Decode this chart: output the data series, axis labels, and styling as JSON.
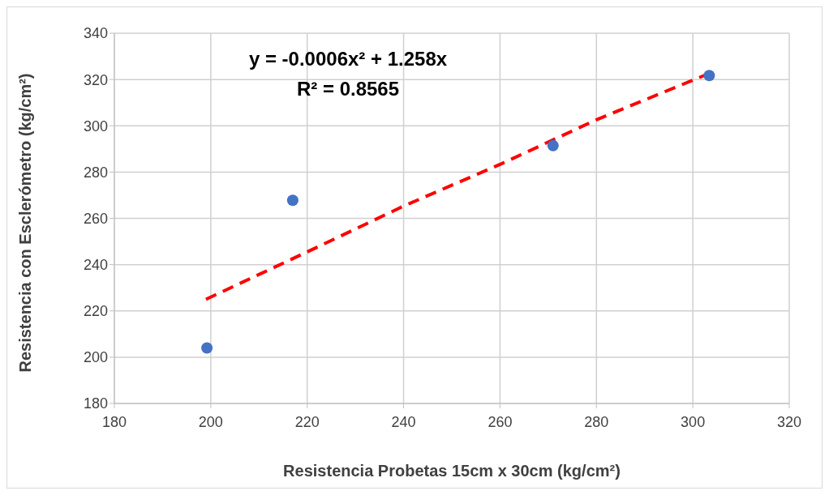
{
  "chart_data": {
    "type": "scatter",
    "xlabel": "Resistencia Probetas 15cm x 30cm  (kg/cm²)",
    "ylabel": "Resistencia con Esclerómetro (kg/cm²)",
    "annotations": [
      "y = -0.0006x² + 1.258x",
      "R² = 0.8565"
    ],
    "xlim": [
      180,
      320
    ],
    "xticks": [
      180,
      200,
      220,
      240,
      260,
      280,
      300,
      320
    ],
    "ylim": [
      180,
      340
    ],
    "yticks": [
      180,
      200,
      220,
      240,
      260,
      280,
      300,
      320,
      340
    ],
    "grid": true,
    "marker": "circle",
    "series": [
      {
        "color": "#4472c4",
        "x": [
          199.2,
          217,
          271,
          303.4
        ],
        "values": [
          204,
          267.8,
          291.4,
          321.7
        ]
      },
      {
        "type": "line",
        "color": "#ff0000",
        "line_style": "dashed",
        "marker": "none",
        "x": [
          199,
          220,
          240,
          260,
          280,
          303.4
        ],
        "values": [
          225,
          245.5,
          265.3,
          283.3,
          302.6,
          322.6
        ]
      }
    ]
  }
}
